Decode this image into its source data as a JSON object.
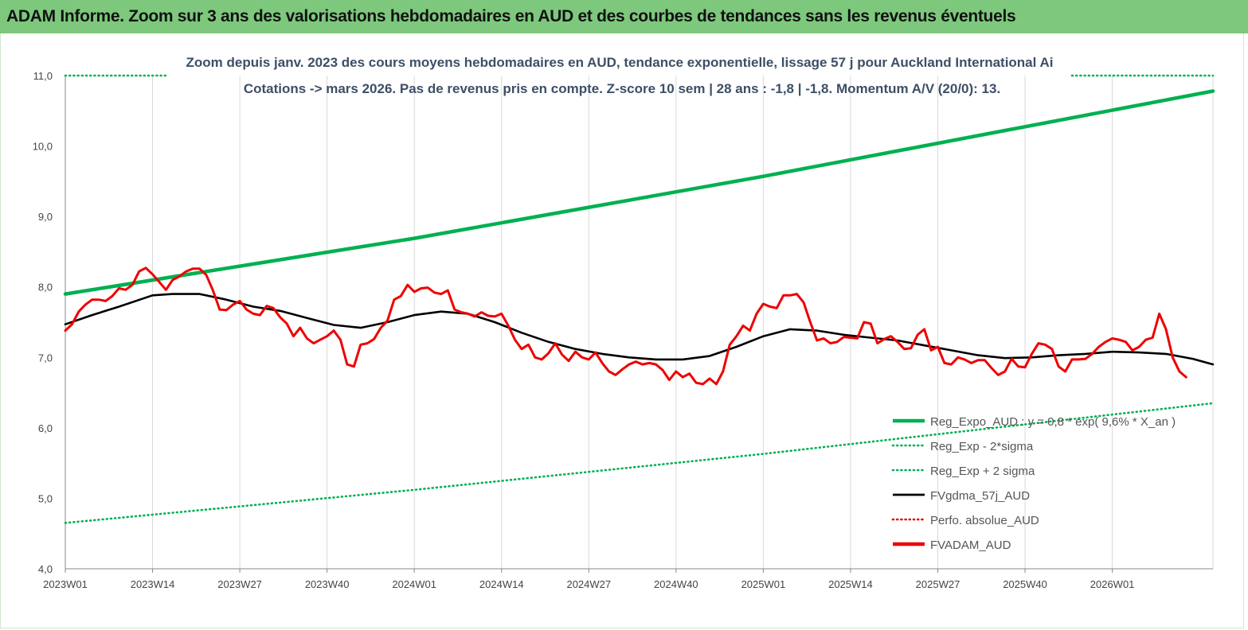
{
  "banner": {
    "title": "ADAM Informe. Zoom sur 3 ans des valorisations hebdomadaires en AUD et des courbes de tendances sans les revenus éventuels"
  },
  "chart_data": {
    "type": "line",
    "subtitle_line1": "Zoom depuis janv. 2023 des cours moyens hebdomadaires en AUD, tendance exponentielle, lissage 57 j pour Auckland International Ai",
    "subtitle_line2": "Cotations -> mars 2026. Pas de revenus pris en compte. Z-score 10 sem  | 28 ans : -1,8 | -1,8. Momentum A/V (20/0): 13.",
    "ylim": [
      4.0,
      11.0
    ],
    "y_ticks": [
      "4,0",
      "5,0",
      "6,0",
      "7,0",
      "8,0",
      "9,0",
      "10,0",
      "11,0"
    ],
    "x_ticks": [
      "2023W01",
      "2023W14",
      "2023W27",
      "2023W40",
      "2024W01",
      "2024W14",
      "2024W27",
      "2024W40",
      "2025W01",
      "2025W14",
      "2025W27",
      "2025W40",
      "2026W01"
    ],
    "x_tick_weeks": [
      0,
      13,
      26,
      39,
      52,
      65,
      78,
      91,
      104,
      117,
      130,
      143,
      156
    ],
    "n_weeks": 171,
    "grid": "vertical",
    "legend_position": "bottom-right",
    "legend": [
      {
        "label": "Reg_Expo_AUD : y = 0,8 * exp( 9,6% *  X_an )",
        "style": "solid-thick",
        "color": "#00b050"
      },
      {
        "label": "Reg_Exp - 2*sigma",
        "style": "dotted",
        "color": "#00b050"
      },
      {
        "label": "Reg_Exp + 2 sigma",
        "style": "dotted",
        "color": "#00b050"
      },
      {
        "label": "FVgdma_57j_AUD",
        "style": "solid",
        "color": "#000000"
      },
      {
        "label": "Perfo. absolue_AUD",
        "style": "dotted",
        "color": "#e00000"
      },
      {
        "label": "FVADAM_AUD",
        "style": "solid-thick",
        "color": "#ee0000"
      }
    ],
    "series": [
      {
        "name": "Reg_Expo_AUD : y = 0,8 * exp( 9,6% *  X_an )",
        "color": "#00b050",
        "points": [
          [
            0,
            7.9
          ],
          [
            52,
            8.69
          ],
          [
            104,
            9.57
          ],
          [
            171,
            10.78
          ]
        ]
      },
      {
        "name": "Reg_Exp - 2*sigma",
        "color": "#00b050",
        "points": [
          [
            0,
            4.65
          ],
          [
            52,
            5.12
          ],
          [
            104,
            5.63
          ],
          [
            171,
            6.35
          ]
        ]
      },
      {
        "name": "Reg_Exp + 2 sigma",
        "color": "#00b050",
        "points": [
          [
            0,
            11.0
          ],
          [
            15,
            11.0
          ]
        ]
      },
      {
        "name": "Reg_Exp + 2 sigma",
        "color": "#00b050",
        "points": [
          [
            150,
            11.0
          ],
          [
            171,
            11.0
          ]
        ]
      },
      {
        "name": "FVgdma_57j_AUD",
        "color": "#000000",
        "points": [
          [
            0,
            7.47
          ],
          [
            4,
            7.6
          ],
          [
            8,
            7.72
          ],
          [
            13,
            7.88
          ],
          [
            16,
            7.9
          ],
          [
            20,
            7.9
          ],
          [
            24,
            7.82
          ],
          [
            28,
            7.72
          ],
          [
            32,
            7.66
          ],
          [
            36,
            7.56
          ],
          [
            40,
            7.46
          ],
          [
            44,
            7.42
          ],
          [
            48,
            7.5
          ],
          [
            52,
            7.6
          ],
          [
            56,
            7.65
          ],
          [
            60,
            7.62
          ],
          [
            64,
            7.5
          ],
          [
            68,
            7.35
          ],
          [
            72,
            7.22
          ],
          [
            76,
            7.12
          ],
          [
            80,
            7.05
          ],
          [
            84,
            7.0
          ],
          [
            88,
            6.97
          ],
          [
            92,
            6.97
          ],
          [
            96,
            7.02
          ],
          [
            100,
            7.15
          ],
          [
            104,
            7.3
          ],
          [
            108,
            7.4
          ],
          [
            112,
            7.38
          ],
          [
            116,
            7.32
          ],
          [
            120,
            7.28
          ],
          [
            124,
            7.24
          ],
          [
            128,
            7.17
          ],
          [
            132,
            7.1
          ],
          [
            136,
            7.03
          ],
          [
            140,
            6.99
          ],
          [
            144,
            7.0
          ],
          [
            148,
            7.03
          ],
          [
            152,
            7.05
          ],
          [
            156,
            7.08
          ],
          [
            160,
            7.07
          ],
          [
            164,
            7.05
          ],
          [
            168,
            6.98
          ],
          [
            171,
            6.9
          ]
        ]
      },
      {
        "name": "FVADAM_AUD",
        "color": "#ee0000",
        "points": [
          [
            0,
            7.38
          ],
          [
            1,
            7.47
          ],
          [
            2,
            7.65
          ],
          [
            3,
            7.75
          ],
          [
            4,
            7.82
          ],
          [
            5,
            7.82
          ],
          [
            6,
            7.8
          ],
          [
            7,
            7.87
          ],
          [
            8,
            7.98
          ],
          [
            9,
            7.96
          ],
          [
            10,
            8.03
          ],
          [
            11,
            8.22
          ],
          [
            12,
            8.27
          ],
          [
            13,
            8.18
          ],
          [
            14,
            8.07
          ],
          [
            15,
            7.96
          ],
          [
            16,
            8.1
          ],
          [
            17,
            8.15
          ],
          [
            18,
            8.22
          ],
          [
            19,
            8.26
          ],
          [
            20,
            8.26
          ],
          [
            21,
            8.17
          ],
          [
            22,
            7.95
          ],
          [
            23,
            7.68
          ],
          [
            24,
            7.67
          ],
          [
            25,
            7.75
          ],
          [
            26,
            7.8
          ],
          [
            27,
            7.68
          ],
          [
            28,
            7.62
          ],
          [
            29,
            7.6
          ],
          [
            30,
            7.73
          ],
          [
            31,
            7.7
          ],
          [
            32,
            7.57
          ],
          [
            33,
            7.48
          ],
          [
            34,
            7.3
          ],
          [
            35,
            7.42
          ],
          [
            36,
            7.27
          ],
          [
            37,
            7.2
          ],
          [
            38,
            7.25
          ],
          [
            39,
            7.3
          ],
          [
            40,
            7.38
          ],
          [
            41,
            7.25
          ],
          [
            42,
            6.9
          ],
          [
            43,
            6.87
          ],
          [
            44,
            7.18
          ],
          [
            45,
            7.2
          ],
          [
            46,
            7.26
          ],
          [
            47,
            7.42
          ],
          [
            48,
            7.52
          ],
          [
            49,
            7.82
          ],
          [
            50,
            7.87
          ],
          [
            51,
            8.03
          ],
          [
            52,
            7.93
          ],
          [
            53,
            7.98
          ],
          [
            54,
            7.99
          ],
          [
            55,
            7.92
          ],
          [
            56,
            7.9
          ],
          [
            57,
            7.95
          ],
          [
            58,
            7.68
          ],
          [
            59,
            7.64
          ],
          [
            60,
            7.62
          ],
          [
            61,
            7.58
          ],
          [
            62,
            7.64
          ],
          [
            63,
            7.59
          ],
          [
            64,
            7.58
          ],
          [
            65,
            7.62
          ],
          [
            66,
            7.45
          ],
          [
            67,
            7.25
          ],
          [
            68,
            7.12
          ],
          [
            69,
            7.18
          ],
          [
            70,
            7.0
          ],
          [
            71,
            6.97
          ],
          [
            72,
            7.06
          ],
          [
            73,
            7.2
          ],
          [
            74,
            7.04
          ],
          [
            75,
            6.95
          ],
          [
            76,
            7.08
          ],
          [
            77,
            7.0
          ],
          [
            78,
            6.97
          ],
          [
            79,
            7.07
          ],
          [
            80,
            6.92
          ],
          [
            81,
            6.8
          ],
          [
            82,
            6.75
          ],
          [
            83,
            6.83
          ],
          [
            84,
            6.9
          ],
          [
            85,
            6.94
          ],
          [
            86,
            6.9
          ],
          [
            87,
            6.92
          ],
          [
            88,
            6.9
          ],
          [
            89,
            6.82
          ],
          [
            90,
            6.68
          ],
          [
            91,
            6.8
          ],
          [
            92,
            6.72
          ],
          [
            93,
            6.77
          ],
          [
            94,
            6.64
          ],
          [
            95,
            6.62
          ],
          [
            96,
            6.7
          ],
          [
            97,
            6.62
          ],
          [
            98,
            6.8
          ],
          [
            99,
            7.18
          ],
          [
            100,
            7.3
          ],
          [
            101,
            7.45
          ],
          [
            102,
            7.38
          ],
          [
            103,
            7.62
          ],
          [
            104,
            7.76
          ],
          [
            105,
            7.72
          ],
          [
            106,
            7.7
          ],
          [
            107,
            7.88
          ],
          [
            108,
            7.88
          ],
          [
            109,
            7.9
          ],
          [
            110,
            7.78
          ],
          [
            111,
            7.5
          ],
          [
            112,
            7.24
          ],
          [
            113,
            7.27
          ],
          [
            114,
            7.2
          ],
          [
            115,
            7.22
          ],
          [
            116,
            7.29
          ],
          [
            117,
            7.28
          ],
          [
            118,
            7.27
          ],
          [
            119,
            7.5
          ],
          [
            120,
            7.48
          ],
          [
            121,
            7.2
          ],
          [
            122,
            7.26
          ],
          [
            123,
            7.3
          ],
          [
            124,
            7.22
          ],
          [
            125,
            7.12
          ],
          [
            126,
            7.13
          ],
          [
            127,
            7.32
          ],
          [
            128,
            7.4
          ],
          [
            129,
            7.1
          ],
          [
            130,
            7.15
          ],
          [
            131,
            6.92
          ],
          [
            132,
            6.9
          ],
          [
            133,
            7.0
          ],
          [
            134,
            6.97
          ],
          [
            135,
            6.92
          ],
          [
            136,
            6.96
          ],
          [
            137,
            6.96
          ],
          [
            138,
            6.85
          ],
          [
            139,
            6.75
          ],
          [
            140,
            6.8
          ],
          [
            141,
            6.98
          ],
          [
            142,
            6.87
          ],
          [
            143,
            6.86
          ],
          [
            144,
            7.05
          ],
          [
            145,
            7.2
          ],
          [
            146,
            7.18
          ],
          [
            147,
            7.12
          ],
          [
            148,
            6.87
          ],
          [
            149,
            6.8
          ],
          [
            150,
            6.97
          ],
          [
            151,
            6.97
          ],
          [
            152,
            6.98
          ],
          [
            153,
            7.05
          ],
          [
            154,
            7.15
          ],
          [
            155,
            7.22
          ],
          [
            156,
            7.27
          ],
          [
            157,
            7.25
          ],
          [
            158,
            7.22
          ],
          [
            159,
            7.1
          ],
          [
            160,
            7.15
          ],
          [
            161,
            7.25
          ],
          [
            162,
            7.28
          ],
          [
            163,
            7.62
          ],
          [
            164,
            7.4
          ],
          [
            165,
            7.0
          ],
          [
            166,
            6.8
          ],
          [
            167,
            6.72
          ]
        ]
      }
    ]
  }
}
